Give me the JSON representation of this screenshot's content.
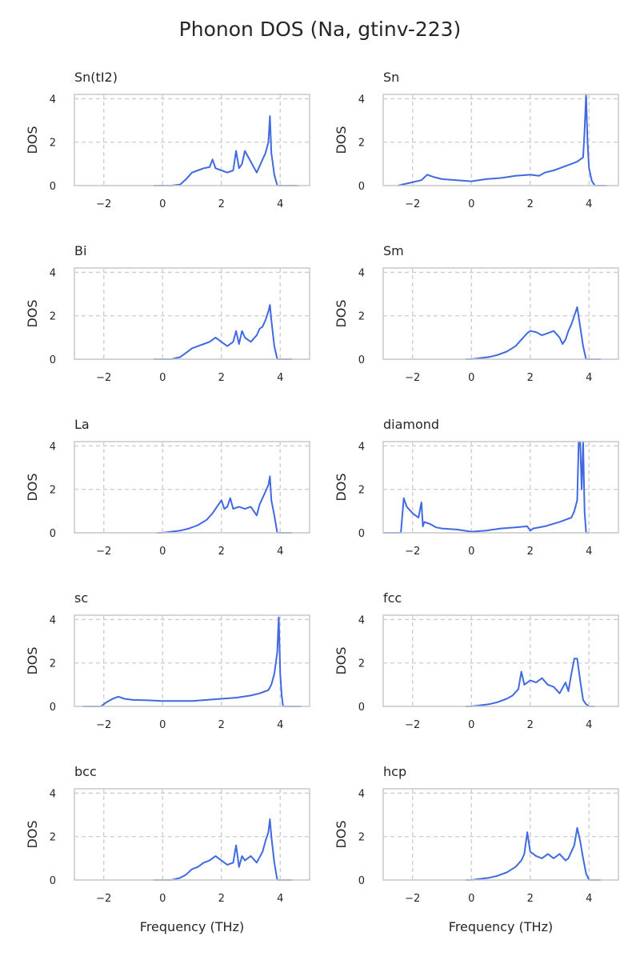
{
  "figure": {
    "title": "Phonon DOS (Na, gtinv-223)",
    "xlabel": "Frequency (THz)",
    "ylabel": "DOS"
  },
  "colors": {
    "line": "#4169e1",
    "grid": "#cccccc",
    "frame": "#cccccc",
    "text": "#262626"
  },
  "chart_data": [
    {
      "type": "line",
      "title": "Sn(tI2)",
      "xlabel": "",
      "ylabel": "DOS",
      "xlim": [
        -3,
        5
      ],
      "ylim": [
        0,
        4.2
      ],
      "xticks": [
        -2,
        0,
        2,
        4
      ],
      "yticks": [
        0,
        2,
        4
      ],
      "grid": true,
      "series": [
        {
          "x": [
            -0.3,
            0,
            0.3,
            0.6,
            0.8,
            1.0,
            1.2,
            1.4,
            1.6,
            1.7,
            1.8,
            2.0,
            2.2,
            2.4,
            2.5,
            2.6,
            2.7,
            2.8,
            3.0,
            3.2,
            3.4,
            3.5,
            3.6,
            3.65,
            3.7,
            3.8,
            3.9,
            4.0,
            4.2,
            4.4,
            4.6
          ],
          "y": [
            0,
            0,
            0,
            0.05,
            0.3,
            0.6,
            0.7,
            0.8,
            0.85,
            1.2,
            0.8,
            0.7,
            0.6,
            0.7,
            1.6,
            0.8,
            1.0,
            1.6,
            1.1,
            0.6,
            1.2,
            1.5,
            2.0,
            3.2,
            1.5,
            0.5,
            0,
            0,
            0,
            0,
            0
          ]
        }
      ]
    },
    {
      "type": "line",
      "title": "Sn",
      "xlabel": "",
      "ylabel": "DOS",
      "xlim": [
        -3,
        5
      ],
      "ylim": [
        0,
        4.2
      ],
      "xticks": [
        -2,
        0,
        2,
        4
      ],
      "yticks": [
        0,
        2,
        4
      ],
      "grid": true,
      "series": [
        {
          "x": [
            -2.5,
            -1.7,
            -1.5,
            -1.3,
            -1.0,
            -0.5,
            0,
            0.5,
            1.0,
            1.5,
            2.0,
            2.3,
            2.5,
            2.8,
            3.0,
            3.2,
            3.4,
            3.6,
            3.8,
            3.85,
            3.9,
            3.95,
            4.0,
            4.1,
            4.2,
            4.4,
            4.6
          ],
          "y": [
            0,
            0.25,
            0.5,
            0.4,
            0.3,
            0.25,
            0.2,
            0.3,
            0.35,
            0.45,
            0.5,
            0.45,
            0.6,
            0.7,
            0.8,
            0.9,
            1.0,
            1.1,
            1.3,
            2.5,
            4.2,
            2.0,
            0.8,
            0.2,
            0,
            0,
            0
          ]
        }
      ]
    },
    {
      "type": "line",
      "title": "Bi",
      "xlabel": "",
      "ylabel": "DOS",
      "xlim": [
        -3,
        5
      ],
      "ylim": [
        0,
        4.2
      ],
      "xticks": [
        -2,
        0,
        2,
        4
      ],
      "yticks": [
        0,
        2,
        4
      ],
      "grid": true,
      "series": [
        {
          "x": [
            -0.3,
            0,
            0.3,
            0.6,
            0.8,
            1.0,
            1.2,
            1.4,
            1.6,
            1.8,
            2.0,
            2.2,
            2.4,
            2.5,
            2.6,
            2.7,
            2.8,
            3.0,
            3.2,
            3.3,
            3.4,
            3.5,
            3.6,
            3.65,
            3.7,
            3.8,
            3.9,
            4.0,
            4.2,
            4.4
          ],
          "y": [
            0,
            0,
            0,
            0.1,
            0.3,
            0.5,
            0.6,
            0.7,
            0.8,
            1.0,
            0.8,
            0.6,
            0.8,
            1.3,
            0.7,
            1.3,
            1.0,
            0.8,
            1.1,
            1.4,
            1.5,
            1.8,
            2.2,
            2.5,
            1.8,
            0.6,
            0,
            0,
            0,
            0
          ]
        }
      ]
    },
    {
      "type": "line",
      "title": "Sm",
      "xlabel": "",
      "ylabel": "DOS",
      "xlim": [
        -3,
        5
      ],
      "ylim": [
        0,
        4.2
      ],
      "xticks": [
        -2,
        0,
        2,
        4
      ],
      "yticks": [
        0,
        2,
        4
      ],
      "grid": true,
      "series": [
        {
          "x": [
            -0.2,
            0,
            0.3,
            0.6,
            0.9,
            1.2,
            1.5,
            1.7,
            1.9,
            2.0,
            2.2,
            2.4,
            2.6,
            2.8,
            3.0,
            3.1,
            3.2,
            3.3,
            3.4,
            3.5,
            3.6,
            3.7,
            3.8,
            3.9,
            4.0,
            4.2,
            4.4
          ],
          "y": [
            0,
            0,
            0.05,
            0.1,
            0.2,
            0.35,
            0.6,
            0.9,
            1.2,
            1.3,
            1.25,
            1.1,
            1.2,
            1.3,
            1.0,
            0.7,
            0.9,
            1.3,
            1.6,
            2.0,
            2.4,
            1.5,
            0.6,
            0,
            0,
            0,
            0
          ]
        }
      ]
    },
    {
      "type": "line",
      "title": "La",
      "xlabel": "",
      "ylabel": "DOS",
      "xlim": [
        -3,
        5
      ],
      "ylim": [
        0,
        4.2
      ],
      "xticks": [
        -2,
        0,
        2,
        4
      ],
      "yticks": [
        0,
        2,
        4
      ],
      "grid": true,
      "series": [
        {
          "x": [
            -0.2,
            0,
            0.3,
            0.6,
            0.9,
            1.2,
            1.5,
            1.7,
            1.9,
            2.0,
            2.1,
            2.2,
            2.3,
            2.4,
            2.6,
            2.8,
            3.0,
            3.2,
            3.3,
            3.4,
            3.5,
            3.6,
            3.65,
            3.7,
            3.8,
            3.9,
            4.0,
            4.2,
            4.4
          ],
          "y": [
            0,
            0,
            0.05,
            0.1,
            0.2,
            0.35,
            0.6,
            0.9,
            1.3,
            1.5,
            1.1,
            1.2,
            1.6,
            1.1,
            1.2,
            1.1,
            1.2,
            0.8,
            1.3,
            1.6,
            1.9,
            2.2,
            2.6,
            1.5,
            0.8,
            0,
            0,
            0,
            0
          ]
        }
      ]
    },
    {
      "type": "line",
      "title": "diamond",
      "xlabel": "",
      "ylabel": "DOS",
      "xlim": [
        -3,
        5
      ],
      "ylim": [
        0,
        4.2
      ],
      "xticks": [
        -2,
        0,
        2,
        4
      ],
      "yticks": [
        0,
        2,
        4
      ],
      "grid": true,
      "series": [
        {
          "x": [
            -3.0,
            -2.4,
            -2.3,
            -2.2,
            -2.0,
            -1.9,
            -1.8,
            -1.7,
            -1.65,
            -1.6,
            -1.4,
            -1.2,
            -1.0,
            -0.5,
            0,
            0.5,
            1.0,
            1.5,
            1.9,
            2.0,
            2.1,
            2.5,
            3.0,
            3.2,
            3.4,
            3.5,
            3.6,
            3.65,
            3.7,
            3.75,
            3.8,
            3.85,
            3.9,
            4.0
          ],
          "y": [
            0,
            0,
            1.6,
            1.2,
            0.9,
            0.8,
            0.7,
            1.4,
            0.3,
            0.5,
            0.4,
            0.25,
            0.2,
            0.15,
            0.05,
            0.1,
            0.2,
            0.25,
            0.3,
            0.1,
            0.2,
            0.3,
            0.5,
            0.6,
            0.7,
            1.0,
            1.5,
            4.2,
            4.2,
            2.0,
            4.2,
            1.0,
            0,
            0
          ]
        }
      ]
    },
    {
      "type": "line",
      "title": "sc",
      "xlabel": "",
      "ylabel": "DOS",
      "xlim": [
        -3,
        5
      ],
      "ylim": [
        0,
        4.2
      ],
      "xticks": [
        -2,
        0,
        2,
        4
      ],
      "yticks": [
        0,
        2,
        4
      ],
      "grid": true,
      "series": [
        {
          "x": [
            -2.7,
            -2.1,
            -1.9,
            -1.7,
            -1.5,
            -1.3,
            -1.0,
            -0.5,
            0,
            0.5,
            1.0,
            1.5,
            2.0,
            2.5,
            3.0,
            3.3,
            3.5,
            3.6,
            3.7,
            3.8,
            3.9,
            3.95,
            4.0,
            4.05,
            4.1,
            4.2,
            4.7
          ],
          "y": [
            0,
            0,
            0.2,
            0.35,
            0.45,
            0.35,
            0.3,
            0.28,
            0.25,
            0.25,
            0.25,
            0.3,
            0.35,
            0.4,
            0.5,
            0.6,
            0.7,
            0.75,
            1.0,
            1.5,
            2.5,
            4.1,
            1.5,
            0.5,
            0,
            0,
            0
          ]
        }
      ]
    },
    {
      "type": "line",
      "title": "fcc",
      "xlabel": "",
      "ylabel": "DOS",
      "xlim": [
        -3,
        5
      ],
      "ylim": [
        0,
        4.2
      ],
      "xticks": [
        -2,
        0,
        2,
        4
      ],
      "yticks": [
        0,
        2,
        4
      ],
      "grid": true,
      "series": [
        {
          "x": [
            -0.2,
            0,
            0.3,
            0.6,
            0.9,
            1.2,
            1.4,
            1.6,
            1.7,
            1.8,
            2.0,
            2.2,
            2.4,
            2.6,
            2.8,
            3.0,
            3.2,
            3.3,
            3.4,
            3.5,
            3.6,
            3.7,
            3.8,
            3.9,
            4.0,
            4.2
          ],
          "y": [
            0,
            0,
            0.05,
            0.1,
            0.2,
            0.35,
            0.5,
            0.8,
            1.6,
            1.0,
            1.2,
            1.1,
            1.3,
            1.0,
            0.9,
            0.6,
            1.1,
            0.7,
            1.5,
            2.2,
            2.2,
            1.2,
            0.3,
            0.1,
            0,
            0
          ]
        }
      ]
    },
    {
      "type": "line",
      "title": "bcc",
      "xlabel": "",
      "ylabel": "DOS",
      "xlim": [
        -3,
        5
      ],
      "ylim": [
        0,
        4.2
      ],
      "xticks": [
        -2,
        0,
        2,
        4
      ],
      "yticks": [
        0,
        2,
        4
      ],
      "grid": true,
      "series": [
        {
          "x": [
            -0.3,
            0,
            0.3,
            0.6,
            0.8,
            1.0,
            1.2,
            1.4,
            1.6,
            1.8,
            2.0,
            2.2,
            2.4,
            2.5,
            2.6,
            2.7,
            2.8,
            3.0,
            3.2,
            3.4,
            3.5,
            3.6,
            3.65,
            3.7,
            3.8,
            3.9,
            4.0,
            4.2,
            4.4
          ],
          "y": [
            0,
            0,
            0,
            0.1,
            0.25,
            0.5,
            0.6,
            0.8,
            0.9,
            1.1,
            0.9,
            0.7,
            0.8,
            1.6,
            0.6,
            1.1,
            0.9,
            1.1,
            0.8,
            1.3,
            1.8,
            2.2,
            2.8,
            2.0,
            0.8,
            0,
            0,
            0,
            0
          ]
        }
      ]
    },
    {
      "type": "line",
      "title": "hcp",
      "xlabel": "",
      "ylabel": "DOS",
      "xlim": [
        -3,
        5
      ],
      "ylim": [
        0,
        4.2
      ],
      "xticks": [
        -2,
        0,
        2,
        4
      ],
      "yticks": [
        0,
        2,
        4
      ],
      "grid": true,
      "series": [
        {
          "x": [
            -0.2,
            0,
            0.3,
            0.6,
            0.9,
            1.2,
            1.5,
            1.7,
            1.8,
            1.9,
            2.0,
            2.2,
            2.4,
            2.6,
            2.8,
            3.0,
            3.2,
            3.3,
            3.4,
            3.5,
            3.6,
            3.7,
            3.8,
            3.9,
            4.0,
            4.2,
            4.4
          ],
          "y": [
            0,
            0,
            0.05,
            0.1,
            0.2,
            0.35,
            0.6,
            0.9,
            1.2,
            2.2,
            1.3,
            1.1,
            1.0,
            1.2,
            1.0,
            1.2,
            0.9,
            1.0,
            1.3,
            1.6,
            2.4,
            1.8,
            1.0,
            0.3,
            0,
            0,
            0
          ]
        }
      ]
    }
  ]
}
